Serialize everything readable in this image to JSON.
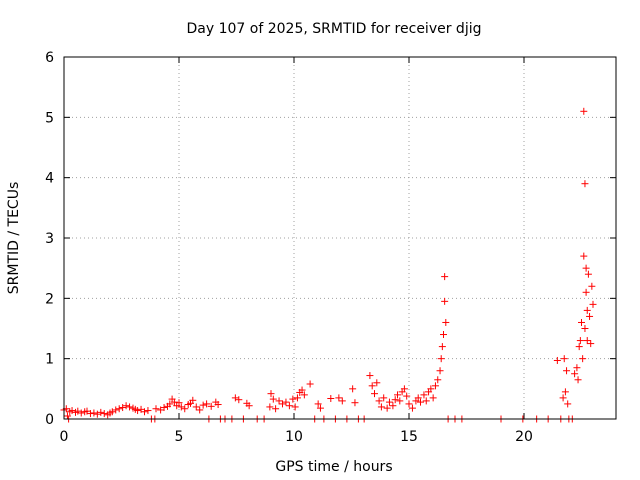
{
  "chart_data": {
    "type": "scatter",
    "title": "Day 107 of 2025, SRMTID for receiver djig",
    "xlabel": "GPS time / hours",
    "ylabel": "SRMTID / TECUs",
    "xlim": [
      0,
      24
    ],
    "ylim": [
      0,
      6
    ],
    "x_ticks": [
      0,
      5,
      10,
      15,
      20
    ],
    "y_ticks": [
      0,
      1,
      2,
      3,
      4,
      5,
      6
    ],
    "x_tick_labels": [
      "0",
      "5",
      "10",
      "15",
      "20"
    ],
    "y_tick_labels": [
      "0",
      "1",
      "2",
      "3",
      "4",
      "5",
      "6"
    ],
    "grid": true,
    "marker": "plus",
    "series": [
      {
        "name": "SRMTID",
        "color": "#ff0000",
        "points": [
          [
            0.0,
            0.15
          ],
          [
            0.1,
            0.17
          ],
          [
            0.15,
            0.05
          ],
          [
            0.2,
            0.0
          ],
          [
            0.25,
            0.12
          ],
          [
            0.35,
            0.14
          ],
          [
            0.5,
            0.11
          ],
          [
            0.6,
            0.13
          ],
          [
            0.75,
            0.1
          ],
          [
            0.9,
            0.12
          ],
          [
            1.0,
            0.13
          ],
          [
            1.15,
            0.09
          ],
          [
            1.3,
            0.1
          ],
          [
            1.45,
            0.08
          ],
          [
            1.6,
            0.11
          ],
          [
            1.75,
            0.09
          ],
          [
            1.9,
            0.07
          ],
          [
            2.0,
            0.1
          ],
          [
            2.1,
            0.12
          ],
          [
            2.25,
            0.15
          ],
          [
            2.4,
            0.17
          ],
          [
            2.55,
            0.19
          ],
          [
            2.7,
            0.22
          ],
          [
            2.85,
            0.2
          ],
          [
            3.0,
            0.18
          ],
          [
            3.1,
            0.16
          ],
          [
            3.2,
            0.14
          ],
          [
            3.35,
            0.16
          ],
          [
            3.5,
            0.12
          ],
          [
            3.65,
            0.14
          ],
          [
            3.8,
            0.0
          ],
          [
            3.95,
            0.0
          ],
          [
            4.0,
            0.17
          ],
          [
            4.2,
            0.15
          ],
          [
            4.35,
            0.19
          ],
          [
            4.5,
            0.21
          ],
          [
            4.6,
            0.25
          ],
          [
            4.7,
            0.33
          ],
          [
            4.8,
            0.28
          ],
          [
            4.9,
            0.22
          ],
          [
            5.0,
            0.27
          ],
          [
            5.1,
            0.2
          ],
          [
            5.25,
            0.17
          ],
          [
            5.4,
            0.24
          ],
          [
            5.5,
            0.26
          ],
          [
            5.6,
            0.31
          ],
          [
            5.75,
            0.2
          ],
          [
            5.9,
            0.15
          ],
          [
            6.05,
            0.23
          ],
          [
            6.2,
            0.25
          ],
          [
            6.3,
            0.0
          ],
          [
            6.4,
            0.21
          ],
          [
            6.6,
            0.28
          ],
          [
            6.7,
            0.24
          ],
          [
            6.8,
            0.0
          ],
          [
            7.0,
            0.0
          ],
          [
            7.3,
            0.0
          ],
          [
            7.45,
            0.35
          ],
          [
            7.6,
            0.32
          ],
          [
            7.8,
            0.0
          ],
          [
            7.95,
            0.26
          ],
          [
            8.05,
            0.22
          ],
          [
            8.4,
            0.0
          ],
          [
            8.7,
            0.0
          ],
          [
            8.95,
            0.2
          ],
          [
            9.0,
            0.42
          ],
          [
            9.1,
            0.33
          ],
          [
            9.2,
            0.17
          ],
          [
            9.35,
            0.3
          ],
          [
            9.5,
            0.25
          ],
          [
            9.65,
            0.28
          ],
          [
            9.8,
            0.22
          ],
          [
            9.95,
            0.33
          ],
          [
            10.05,
            0.2
          ],
          [
            10.15,
            0.35
          ],
          [
            10.25,
            0.44
          ],
          [
            10.35,
            0.48
          ],
          [
            10.45,
            0.4
          ],
          [
            10.7,
            0.58
          ],
          [
            10.9,
            0.0
          ],
          [
            11.05,
            0.25
          ],
          [
            11.15,
            0.18
          ],
          [
            11.3,
            0.0
          ],
          [
            11.6,
            0.34
          ],
          [
            11.8,
            0.0
          ],
          [
            11.95,
            0.35
          ],
          [
            12.1,
            0.3
          ],
          [
            12.3,
            0.0
          ],
          [
            12.55,
            0.5
          ],
          [
            12.65,
            0.27
          ],
          [
            12.8,
            0.0
          ],
          [
            13.05,
            0.0
          ],
          [
            13.3,
            0.72
          ],
          [
            13.4,
            0.55
          ],
          [
            13.5,
            0.42
          ],
          [
            13.6,
            0.6
          ],
          [
            13.7,
            0.3
          ],
          [
            13.8,
            0.2
          ],
          [
            13.9,
            0.35
          ],
          [
            14.05,
            0.18
          ],
          [
            14.15,
            0.28
          ],
          [
            14.3,
            0.22
          ],
          [
            14.4,
            0.32
          ],
          [
            14.5,
            0.4
          ],
          [
            14.6,
            0.3
          ],
          [
            14.7,
            0.45
          ],
          [
            14.8,
            0.5
          ],
          [
            14.9,
            0.38
          ],
          [
            15.0,
            0.25
          ],
          [
            15.15,
            0.18
          ],
          [
            15.3,
            0.3
          ],
          [
            15.4,
            0.35
          ],
          [
            15.5,
            0.28
          ],
          [
            15.65,
            0.4
          ],
          [
            15.75,
            0.3
          ],
          [
            15.85,
            0.45
          ],
          [
            15.95,
            0.5
          ],
          [
            16.05,
            0.35
          ],
          [
            16.15,
            0.55
          ],
          [
            16.25,
            0.65
          ],
          [
            16.35,
            0.8
          ],
          [
            16.4,
            1.0
          ],
          [
            16.45,
            1.2
          ],
          [
            16.5,
            1.4
          ],
          [
            16.55,
            2.36
          ],
          [
            16.55,
            1.95
          ],
          [
            16.6,
            1.6
          ],
          [
            16.7,
            0.0
          ],
          [
            17.0,
            0.0
          ],
          [
            17.3,
            0.0
          ],
          [
            19.0,
            0.0
          ],
          [
            19.95,
            0.0
          ],
          [
            20.55,
            0.0
          ],
          [
            21.05,
            0.0
          ],
          [
            21.45,
            0.97
          ],
          [
            21.6,
            0.0
          ],
          [
            21.7,
            0.35
          ],
          [
            21.75,
            1.0
          ],
          [
            21.8,
            0.45
          ],
          [
            21.85,
            0.8
          ],
          [
            21.9,
            0.25
          ],
          [
            21.95,
            0.0
          ],
          [
            22.1,
            0.0
          ],
          [
            22.2,
            0.75
          ],
          [
            22.3,
            0.85
          ],
          [
            22.35,
            0.65
          ],
          [
            22.4,
            1.2
          ],
          [
            22.45,
            1.3
          ],
          [
            22.5,
            1.6
          ],
          [
            22.55,
            1.0
          ],
          [
            22.6,
            2.7
          ],
          [
            22.6,
            5.1
          ],
          [
            22.65,
            3.9
          ],
          [
            22.65,
            1.5
          ],
          [
            22.7,
            2.5
          ],
          [
            22.7,
            2.1
          ],
          [
            22.75,
            1.8
          ],
          [
            22.75,
            1.3
          ],
          [
            22.8,
            2.4
          ],
          [
            22.85,
            1.7
          ],
          [
            22.9,
            1.25
          ],
          [
            22.95,
            2.2
          ],
          [
            23.0,
            1.9
          ]
        ]
      }
    ]
  }
}
